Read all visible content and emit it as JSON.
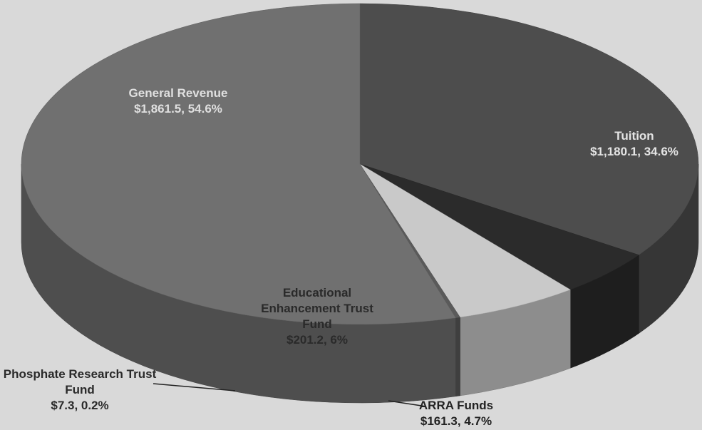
{
  "chart_data": {
    "type": "pie",
    "categories": [
      "Tuition",
      "ARRA Funds",
      "Educational Enhancement Trust Fund",
      "Phosphate Research Trust Fund",
      "General Revenue"
    ],
    "values": [
      1180.1,
      161.3,
      201.2,
      7.3,
      1861.5
    ],
    "value_labels": [
      "$1,180.1, 34.6%",
      "$161.3, 4.7%",
      "$201.2, 6%",
      "$7.3, 0.2%",
      "$1,861.5, 54.6%"
    ],
    "colors": [
      "#4d4d4d",
      "#2b2b2b",
      "#c9c9c9",
      "#5a5a5a",
      "#707070"
    ]
  }
}
